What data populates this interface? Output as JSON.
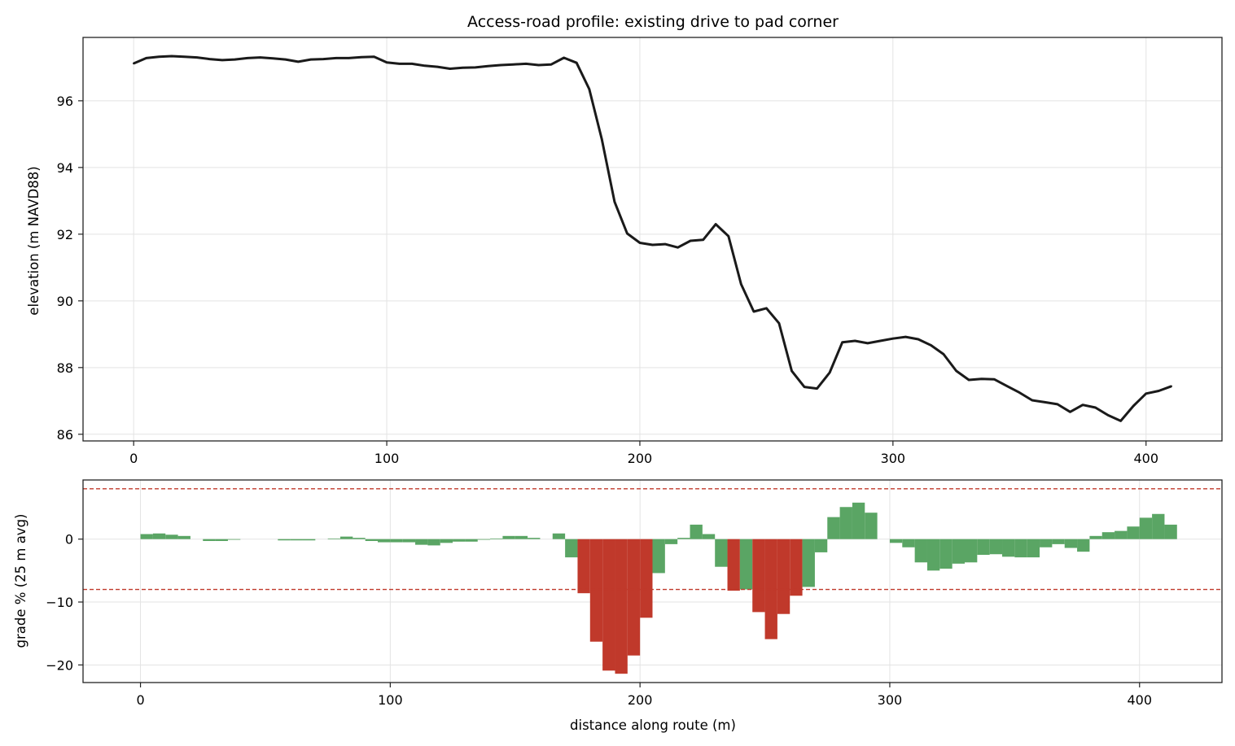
{
  "chart_data": [
    {
      "type": "line",
      "title": "Access-road profile: existing drive to pad corner",
      "xlabel": "",
      "ylabel": "elevation (m NAVD88)",
      "xlim": [
        -20,
        430
      ],
      "ylim": [
        85.8,
        97.9
      ],
      "xticks": [
        0,
        100,
        200,
        300,
        400
      ],
      "yticks": [
        86,
        88,
        90,
        92,
        94,
        96
      ],
      "grid": true,
      "color": "#1a1a1a",
      "x": [
        0,
        5,
        10,
        15,
        20,
        25,
        30,
        35,
        40,
        45,
        50,
        55,
        60,
        65,
        70,
        75,
        80,
        85,
        90,
        95,
        100,
        105,
        110,
        115,
        120,
        125,
        130,
        135,
        140,
        145,
        150,
        155,
        160,
        165,
        170,
        175,
        180,
        185,
        190,
        195,
        200,
        205,
        210,
        215,
        220,
        225,
        230,
        235,
        240,
        245,
        250,
        255,
        260,
        265,
        270,
        275,
        280,
        285,
        290,
        295,
        300,
        305,
        310,
        315,
        320,
        325,
        330,
        335,
        340,
        345,
        350,
        355,
        360,
        365,
        370,
        375,
        380,
        385,
        390,
        395,
        400,
        405,
        410
      ],
      "y": [
        97.12,
        97.28,
        97.32,
        97.34,
        97.32,
        97.3,
        97.25,
        97.22,
        97.24,
        97.28,
        97.3,
        97.27,
        97.24,
        97.17,
        97.24,
        97.25,
        97.28,
        97.28,
        97.31,
        97.32,
        97.15,
        97.11,
        97.11,
        97.05,
        97.02,
        96.96,
        96.99,
        97.0,
        97.04,
        97.07,
        97.09,
        97.11,
        97.07,
        97.09,
        97.29,
        97.14,
        96.35,
        94.84,
        92.97,
        92.02,
        91.74,
        91.68,
        91.7,
        91.6,
        91.8,
        91.83,
        92.3,
        91.94,
        90.5,
        89.68,
        89.78,
        89.33,
        87.9,
        87.42,
        87.37,
        87.85,
        88.76,
        88.8,
        88.73,
        88.8,
        88.87,
        88.92,
        88.85,
        88.67,
        88.4,
        87.9,
        87.63,
        87.66,
        87.65,
        87.45,
        87.25,
        87.02,
        86.96,
        86.9,
        86.67,
        86.88,
        86.8,
        86.57,
        86.4,
        86.85,
        87.22,
        87.3,
        87.44
      ]
    },
    {
      "type": "bar",
      "title": "",
      "xlabel": "distance along route (m)",
      "ylabel": "grade % (25 m avg)",
      "xlim": [
        -23,
        433
      ],
      "ylim": [
        -22.8,
        9.4
      ],
      "xticks": [
        0,
        100,
        200,
        300,
        400
      ],
      "yticks": [
        -20,
        -10,
        0
      ],
      "grid": true,
      "limit_lines": [
        8,
        -8
      ],
      "limit_color": "#c0392b",
      "colors": {
        "within_limit": "#5aa564",
        "over_limit": "#c0392b"
      },
      "bar_width": 5,
      "x": [
        0,
        5,
        10,
        15,
        20,
        25,
        30,
        35,
        40,
        45,
        50,
        55,
        60,
        65,
        70,
        75,
        80,
        85,
        90,
        95,
        100,
        105,
        110,
        115,
        120,
        125,
        130,
        135,
        140,
        145,
        150,
        155,
        160,
        165,
        170,
        175,
        180,
        185,
        190,
        195,
        200,
        205,
        210,
        215,
        220,
        225,
        230,
        235,
        240,
        245,
        250,
        255,
        260,
        265,
        270,
        275,
        280,
        285,
        290,
        295,
        300,
        305,
        310,
        315,
        320,
        325,
        330,
        335,
        340,
        345,
        350,
        355,
        360,
        365,
        370,
        375,
        380,
        385,
        390,
        395,
        400,
        405,
        410
      ],
      "values": [
        0.8,
        0.9,
        0.7,
        0.5,
        0,
        -0.3,
        -0.3,
        -0.1,
        0,
        0,
        0,
        -0.2,
        -0.2,
        -0.2,
        0,
        0.1,
        0.4,
        0.2,
        -0.3,
        -0.5,
        -0.5,
        -0.5,
        -0.9,
        -1.0,
        -0.6,
        -0.4,
        -0.4,
        -0.1,
        0.1,
        0.5,
        0.5,
        0.2,
        0,
        0.9,
        -2.9,
        -8.6,
        -16.3,
        -20.9,
        -21.4,
        -18.5,
        -12.5,
        -5.4,
        -0.8,
        0.2,
        2.3,
        0.8,
        -4.4,
        -8.2,
        -8.0,
        -11.6,
        -15.9,
        -11.9,
        -9.0,
        -7.6,
        -2.1,
        3.5,
        5.1,
        5.8,
        4.2,
        0,
        -0.6,
        -1.3,
        -3.7,
        -5.0,
        -4.7,
        -3.9,
        -3.7,
        -2.5,
        -2.4,
        -2.8,
        -2.9,
        -2.9,
        -1.3,
        -0.8,
        -1.4,
        -2.0,
        0.5,
        1.1,
        1.3,
        2.0,
        3.4,
        4.0,
        2.3
      ]
    }
  ]
}
